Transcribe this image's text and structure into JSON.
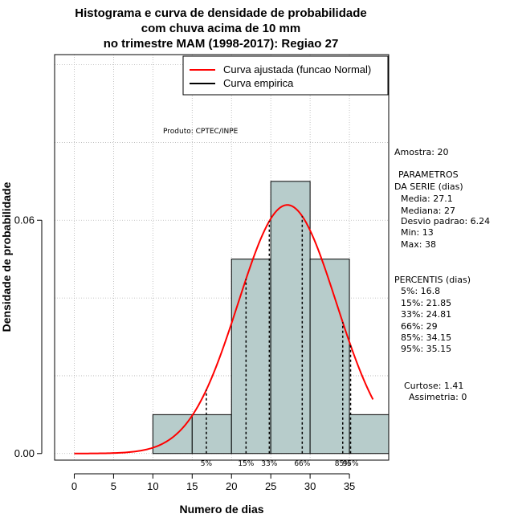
{
  "chart_data": {
    "type": "histogram",
    "title_lines": [
      "Histograma e curva de densidade de probabilidade",
      "com chuva acima de 10 mm",
      "no trimestre MAM (1998-2017): Regiao 27"
    ],
    "xlabel": "Numero de dias",
    "ylabel": "Densidade de probabilidade",
    "xlim": [
      -2.5,
      40
    ],
    "ylim": [
      -0.0017,
      0.1026
    ],
    "x_ticks": [
      0,
      5,
      10,
      15,
      20,
      25,
      30,
      35
    ],
    "y_ticks": [
      0.0,
      0.06
    ],
    "y_tick_labels": [
      "0.00",
      "0.06"
    ],
    "grid": true,
    "bar_color": "#b7cccb",
    "bins": [
      {
        "x0": 10,
        "x1": 15,
        "density": 0.01
      },
      {
        "x0": 15,
        "x1": 20,
        "density": 0.01
      },
      {
        "x0": 20,
        "x1": 25,
        "density": 0.05
      },
      {
        "x0": 25,
        "x1": 30,
        "density": 0.07
      },
      {
        "x0": 30,
        "x1": 35,
        "density": 0.05
      },
      {
        "x0": 35,
        "x1": 40,
        "density": 0.01
      }
    ],
    "fitted_curve": {
      "name": "Curva ajustada (funcao Normal)",
      "color": "#ff0000",
      "mean": 27.1,
      "sd": 6.24,
      "x_start": 0,
      "x_end": 38
    },
    "percentiles": [
      {
        "label": "5%",
        "value": 16.8
      },
      {
        "label": "15%",
        "value": 21.85
      },
      {
        "label": "33%",
        "value": 24.81
      },
      {
        "label": "66%",
        "value": 29
      },
      {
        "label": "85%",
        "value": 34.15
      },
      {
        "label": "95%",
        "value": 35.15
      }
    ],
    "legend": {
      "placement": "top-right",
      "entries": [
        {
          "label": "Curva ajustada (funcao Normal)",
          "color": "#ff0000"
        },
        {
          "label": "Curva empirica",
          "color": "#000000"
        }
      ]
    },
    "annotation": "Produto: CPTEC/INPE",
    "stats": {
      "amostra": "Amostra: 20",
      "param_header_1": "PARAMETROS",
      "param_header_2": "DA SERIE (dias)",
      "media": "Media: 27.1",
      "mediana": "Mediana: 27",
      "desvio": "Desvio padrao: 6.24",
      "min": "Min: 13",
      "max": "Max: 38",
      "percentis_header": "PERCENTIS (dias)",
      "p5": "5%: 16.8",
      "p15": "15%: 21.85",
      "p33": "33%: 24.81",
      "p66": "66%: 29",
      "p85": "85%: 34.15",
      "p95": "95%: 35.15",
      "curtose": "Curtose: 1.41",
      "assimetria": "Assimetria: 0"
    }
  }
}
